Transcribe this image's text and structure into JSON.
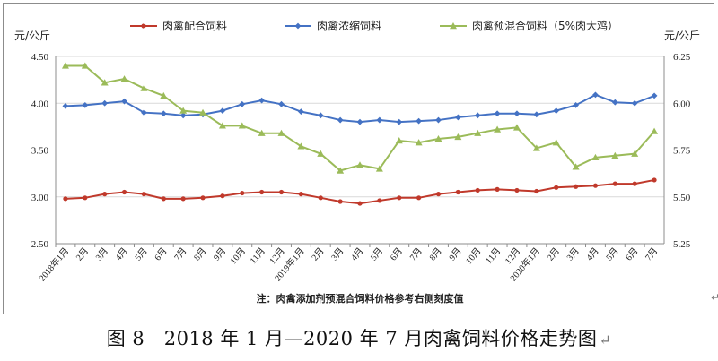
{
  "chart_data": {
    "type": "line",
    "legend_position": "top",
    "grid": true,
    "y_left": {
      "unit_label": "元/公斤",
      "range": [
        2.5,
        4.5
      ],
      "ticks": [
        "2.50",
        "3.00",
        "3.50",
        "4.00",
        "4.50"
      ]
    },
    "y_right": {
      "unit_label": "元/公斤",
      "range": [
        5.25,
        6.25
      ],
      "ticks": [
        "5.25",
        "5.50",
        "5.75",
        "6.00",
        "6.25"
      ]
    },
    "categories": [
      "2018年1月",
      "2月",
      "3月",
      "4月",
      "5月",
      "6月",
      "7月",
      "8月",
      "9月",
      "10月",
      "11月",
      "12月",
      "2019年1月",
      "2月",
      "3月",
      "4月",
      "5月",
      "6月",
      "7月",
      "8月",
      "9月",
      "10月",
      "11月",
      "12月",
      "2020年1月",
      "2月",
      "3月",
      "4月",
      "5月",
      "6月",
      "7月"
    ],
    "series": [
      {
        "name": "肉禽配合饲料",
        "axis": "left",
        "color": "#c0392b",
        "marker": "circle",
        "values": [
          2.98,
          2.99,
          3.03,
          3.05,
          3.03,
          2.98,
          2.98,
          2.99,
          3.01,
          3.04,
          3.05,
          3.05,
          3.03,
          2.99,
          2.95,
          2.93,
          2.96,
          2.99,
          2.99,
          3.03,
          3.05,
          3.07,
          3.08,
          3.07,
          3.06,
          3.1,
          3.11,
          3.12,
          3.14,
          3.14,
          3.18
        ]
      },
      {
        "name": "肉禽浓缩饲料",
        "axis": "left",
        "color": "#4472c4",
        "marker": "diamond",
        "values": [
          3.97,
          3.98,
          4.0,
          4.02,
          3.9,
          3.89,
          3.87,
          3.88,
          3.92,
          3.99,
          4.03,
          3.99,
          3.91,
          3.87,
          3.82,
          3.8,
          3.82,
          3.8,
          3.81,
          3.82,
          3.85,
          3.87,
          3.89,
          3.89,
          3.88,
          3.92,
          3.98,
          4.09,
          4.01,
          4.0,
          4.08
        ]
      },
      {
        "name": "肉禽预混合饲料（5%肉大鸡）",
        "axis": "right",
        "color": "#9bbb59",
        "marker": "triangle",
        "values": [
          6.2,
          6.2,
          6.11,
          6.13,
          6.08,
          6.04,
          5.96,
          5.95,
          5.88,
          5.88,
          5.84,
          5.84,
          5.77,
          5.73,
          5.64,
          5.67,
          5.65,
          5.8,
          5.79,
          5.81,
          5.82,
          5.84,
          5.86,
          5.87,
          5.76,
          5.79,
          5.66,
          5.71,
          5.72,
          5.73,
          5.85
        ]
      }
    ],
    "note": "注：肉禽添加剂预混合饲料价格参考右侧刻度值"
  },
  "caption": "图 8　2018 年 1 月—2020 年 7 月肉禽饲料价格走势图",
  "caption_mark": "↵",
  "edge_mark": "↵"
}
